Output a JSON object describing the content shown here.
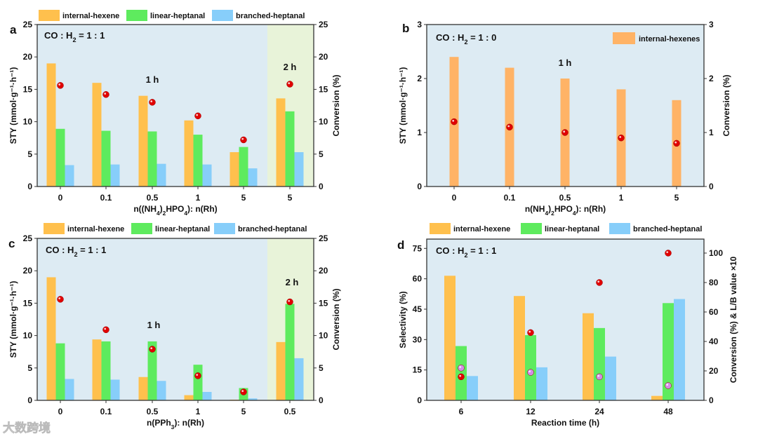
{
  "colors": {
    "orange": "#FFC04D",
    "orange_b": "#FFB366",
    "green": "#5EEB5E",
    "blue": "#87CEFA",
    "bg": "#DDEBF3",
    "bg2h": "#E8F3D9",
    "red": "#E00000",
    "pink": "#D48BE8"
  },
  "watermark": "大数跨境",
  "chart_data": [
    {
      "panel": "a",
      "type": "bar",
      "condition": [
        [
          "CO : H",
          ""
        ],
        [
          "2",
          "sub"
        ],
        [
          " = 1 : 1",
          ""
        ]
      ],
      "categories": [
        "0",
        "0.1",
        "0.5",
        "1",
        "5",
        "5"
      ],
      "annotations": [
        "1 h",
        "2 h"
      ],
      "legend": [
        "internal-hexene",
        "linear-heptanal",
        "branched-heptanal"
      ],
      "series": [
        {
          "name": "internal-hexene",
          "values": [
            19,
            16,
            14,
            10.2,
            5.3,
            13.6
          ]
        },
        {
          "name": "linear-heptanal",
          "values": [
            8.9,
            8.6,
            8.5,
            8.0,
            6.1,
            11.6
          ]
        },
        {
          "name": "branched-heptanal",
          "values": [
            3.3,
            3.4,
            3.5,
            3.4,
            2.8,
            5.3
          ]
        }
      ],
      "conversion": [
        15.6,
        14.2,
        13.0,
        10.9,
        7.2,
        15.8
      ],
      "xlabel": [
        [
          "n((NH",
          ""
        ],
        [
          "4",
          "sub"
        ],
        [
          ")",
          ""
        ],
        [
          "2",
          "sub"
        ],
        [
          "HPO",
          ""
        ],
        [
          "4",
          "sub"
        ],
        [
          "): n(Rh)",
          ""
        ]
      ],
      "ylabel": "STY (mmol·g⁻¹·h⁻¹)",
      "y2label": "Conversion (%)",
      "ylim": [
        0,
        25
      ],
      "y2lim": [
        0,
        25
      ],
      "yticks": [
        0,
        5,
        10,
        15,
        20,
        25
      ],
      "y2ticks": [
        0,
        5,
        10,
        15,
        20,
        25
      ]
    },
    {
      "panel": "b",
      "type": "bar",
      "condition": [
        [
          "CO : H",
          ""
        ],
        [
          "2",
          "sub"
        ],
        [
          " = 1 : 0",
          ""
        ]
      ],
      "categories": [
        "0",
        "0.1",
        "0.5",
        "1",
        "5"
      ],
      "annotations": [
        "1 h"
      ],
      "legend": [
        "internal-hexenes"
      ],
      "series": [
        {
          "name": "internal-hexenes",
          "values": [
            2.4,
            2.2,
            2.0,
            1.8,
            1.6
          ]
        }
      ],
      "conversion": [
        1.2,
        1.1,
        1.0,
        0.9,
        0.8
      ],
      "xlabel": [
        [
          "n(NH",
          ""
        ],
        [
          "4",
          "sub"
        ],
        [
          ")",
          ""
        ],
        [
          "2",
          "sub"
        ],
        [
          "HPO",
          ""
        ],
        [
          "4",
          "sub"
        ],
        [
          "): n(Rh)",
          ""
        ]
      ],
      "ylabel": "STY (mmol·g⁻¹·h⁻¹)",
      "y2label": "Conversion (%)",
      "ylim": [
        0,
        3
      ],
      "y2lim": [
        0,
        3
      ],
      "yticks": [
        0,
        1,
        2,
        3
      ],
      "y2ticks": [
        0,
        1,
        2,
        3
      ]
    },
    {
      "panel": "c",
      "type": "bar",
      "condition": [
        [
          "CO : H",
          ""
        ],
        [
          "2",
          "sub"
        ],
        [
          " = 1 : 1",
          ""
        ]
      ],
      "categories": [
        "0",
        "0.1",
        "0.5",
        "1",
        "5",
        "0.5"
      ],
      "annotations": [
        "1 h",
        "2 h"
      ],
      "legend": [
        "internal-hexene",
        "linear-heptanal",
        "branched-heptanal"
      ],
      "series": [
        {
          "name": "internal-hexene",
          "values": [
            19,
            9.4,
            3.6,
            0.8,
            0.1,
            9.0
          ]
        },
        {
          "name": "linear-heptanal",
          "values": [
            8.8,
            9.1,
            9.1,
            5.5,
            1.9,
            14.9
          ]
        },
        {
          "name": "branched-heptanal",
          "values": [
            3.3,
            3.2,
            3.0,
            1.3,
            0.3,
            6.5
          ]
        }
      ],
      "conversion": [
        15.6,
        10.9,
        7.9,
        3.8,
        1.3,
        15.2
      ],
      "xlabel": [
        [
          "n(PPh",
          ""
        ],
        [
          "3",
          "sub"
        ],
        [
          "): n(Rh)",
          ""
        ]
      ],
      "ylabel": "STY (mmol·g⁻¹·h⁻¹)",
      "y2label": "Conversion (%)",
      "ylim": [
        0,
        25
      ],
      "y2lim": [
        0,
        25
      ],
      "yticks": [
        0,
        5,
        10,
        15,
        20,
        25
      ],
      "y2ticks": [
        0,
        5,
        10,
        15,
        20,
        25
      ]
    },
    {
      "panel": "d",
      "type": "bar",
      "condition": [
        [
          "CO : H",
          ""
        ],
        [
          "2",
          "sub"
        ],
        [
          " = 1 : 1",
          ""
        ]
      ],
      "categories": [
        "6",
        "12",
        "24",
        "48"
      ],
      "annotations": [],
      "legend": [
        "internal-hexene",
        "linear-heptanal",
        "branched-heptanal"
      ],
      "series": [
        {
          "name": "internal-hexene",
          "values": [
            61.5,
            51.5,
            43,
            2.2
          ]
        },
        {
          "name": "linear-heptanal",
          "values": [
            26.8,
            32.2,
            35.7,
            48
          ]
        },
        {
          "name": "branched-heptanal",
          "values": [
            12,
            16.3,
            21.6,
            50
          ]
        }
      ],
      "conversion": [
        16,
        46,
        80,
        100
      ],
      "lb_value_x10": [
        22,
        19,
        16,
        10
      ],
      "xlabel": [
        [
          "Reaction time (h)",
          ""
        ]
      ],
      "ylabel": "Selectivity (%)",
      "y2label": "Conversion (%) & L/B value ×10",
      "ylim": [
        0,
        79.6
      ],
      "y2lim": [
        0,
        109.5
      ],
      "yticks": [
        0,
        15,
        30,
        45,
        60,
        75
      ],
      "y2ticks": [
        0,
        20,
        40,
        60,
        80,
        100
      ]
    }
  ]
}
